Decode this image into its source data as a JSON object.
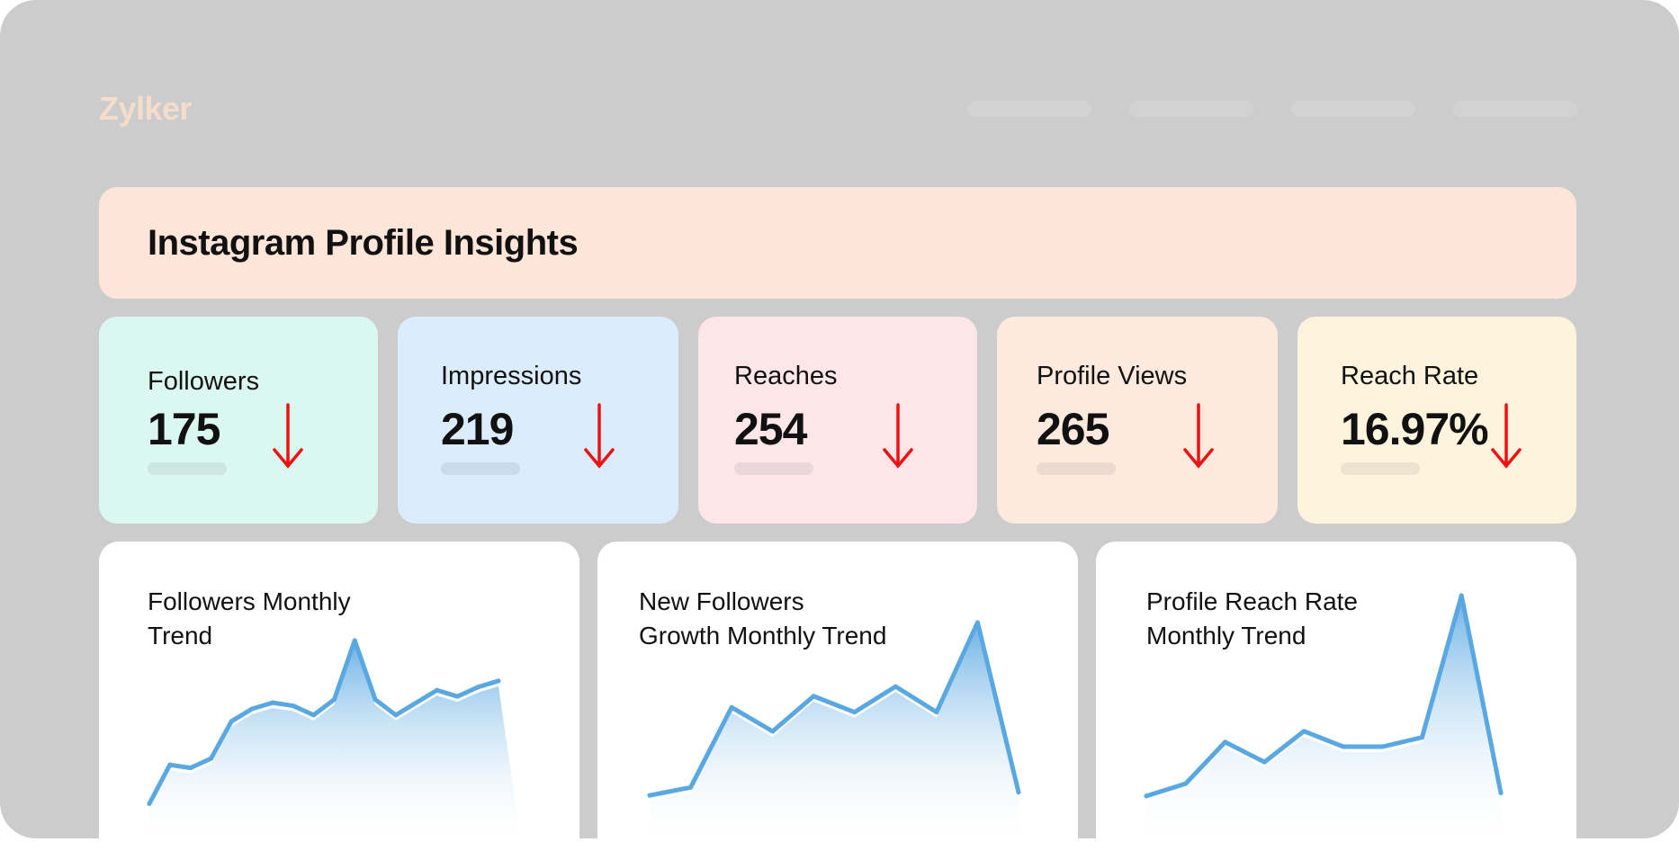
{
  "app": {
    "logo": "Zylker",
    "logo_color": "#f5dccb",
    "frame_color": "#cccccc"
  },
  "nav": {
    "items": [
      "",
      "",
      "",
      ""
    ]
  },
  "banner": {
    "title": "Instagram Profile Insights",
    "color": "#fde5da"
  },
  "kpis": [
    {
      "label": "Followers",
      "value": "175",
      "trend": "down",
      "bg": "#dbf8f0",
      "bar": "#cde6df",
      "arrow_color": "#ee1111"
    },
    {
      "label": "Impressions",
      "value": "219",
      "trend": "down",
      "bg": "#dbedfd",
      "bar": "#cadcea",
      "arrow_color": "#ee1111"
    },
    {
      "label": "Reaches",
      "value": "254",
      "trend": "down",
      "bg": "#fde5e8",
      "bar": "#ead7d9",
      "arrow_color": "#ee1111"
    },
    {
      "label": "Profile Views",
      "value": "265",
      "trend": "down",
      "bg": "#fde9dd",
      "bar": "#ebdad0",
      "arrow_color": "#ee1111"
    },
    {
      "label": "Reach Rate",
      "value": "16.97%",
      "trend": "down",
      "bg": "#fef3dd",
      "bar": "#ece3d0",
      "arrow_color": "#ee1111"
    }
  ],
  "charts": [
    {
      "title": "Followers Monthly\nTrend"
    },
    {
      "title": "New Followers\nGrowth Monthly Trend"
    },
    {
      "title": "Profile Reach Rate\nMonthly Trend"
    }
  ],
  "chart_data": [
    {
      "type": "area",
      "title": "Followers Monthly Trend",
      "line_color": "#5aa8e2",
      "values": [
        5,
        30,
        28,
        34,
        58,
        66,
        70,
        68,
        62,
        72,
        110,
        72,
        62,
        70,
        78,
        74,
        80,
        84
      ]
    },
    {
      "type": "area",
      "title": "New Followers Growth Monthly Trend",
      "line_color": "#5aa8e2",
      "values": [
        10,
        15,
        65,
        50,
        72,
        62,
        78,
        62,
        118,
        12
      ]
    },
    {
      "type": "area",
      "title": "Profile Reach Rate Monthly Trend",
      "line_color": "#5aa8e2",
      "values": [
        10,
        18,
        45,
        32,
        52,
        42,
        42,
        48,
        140,
        12
      ]
    }
  ]
}
